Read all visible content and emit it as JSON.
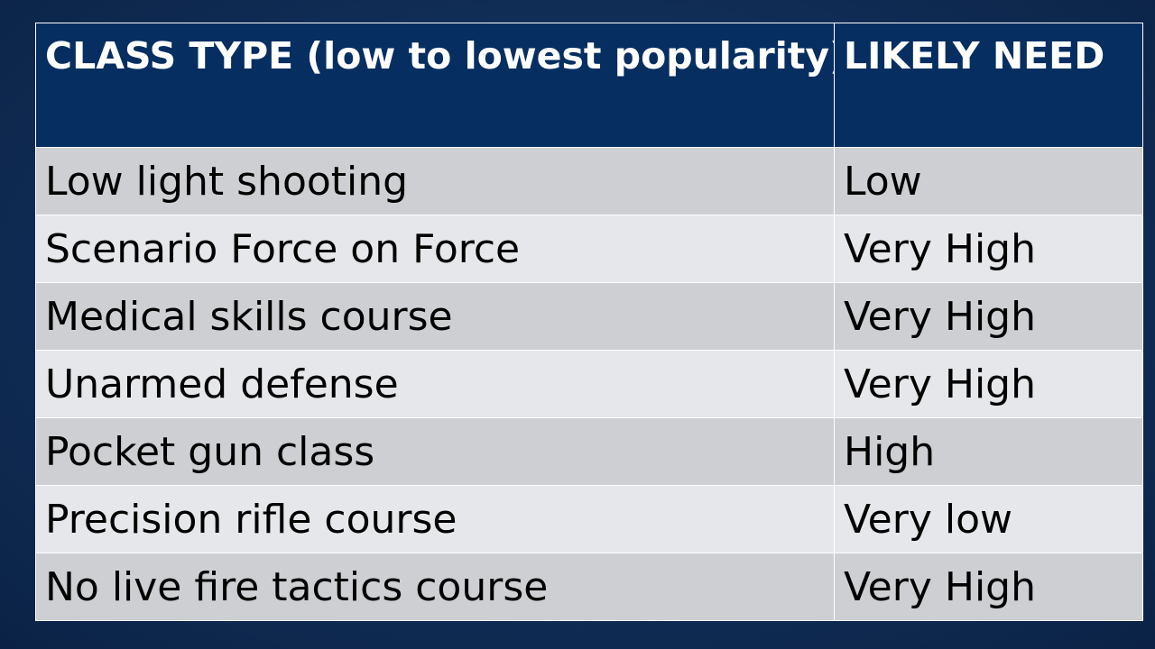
{
  "table": {
    "headers": [
      "CLASS TYPE (low to lowest popularity)",
      "LIKELY NEED"
    ],
    "rows": [
      [
        "Low light shooting",
        "Low"
      ],
      [
        "Scenario Force on Force",
        "Very High"
      ],
      [
        "Medical skills course",
        "Very High"
      ],
      [
        "Unarmed defense",
        "Very High"
      ],
      [
        "Pocket gun class",
        "High"
      ],
      [
        "Precision rifle course",
        "Very low"
      ],
      [
        "No live fire tactics course",
        "Very High"
      ]
    ]
  },
  "colors": {
    "background": "#12305a",
    "header_fill": "#062e61",
    "row_odd": "#cdcfd3",
    "row_even": "#e6e7ea"
  }
}
